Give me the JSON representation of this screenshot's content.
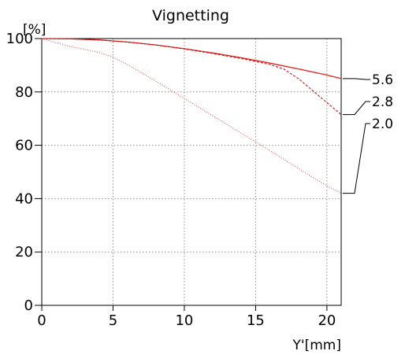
{
  "chart_data": {
    "type": "line",
    "title": "Vignetting",
    "xlabel": "Y'[mm]",
    "ylabel": "[%]",
    "xlim": [
      0,
      21
    ],
    "ylim": [
      0,
      100
    ],
    "x_ticks": [
      0,
      5,
      10,
      15,
      20
    ],
    "y_ticks": [
      0,
      20,
      40,
      60,
      80,
      100
    ],
    "x_tick_labels": [
      "0",
      "5",
      "10",
      "15",
      "20"
    ],
    "y_tick_labels": [
      "0",
      "20",
      "40",
      "60",
      "80",
      "100"
    ],
    "grid": true,
    "series": [
      {
        "name": "5.6",
        "color": "#e02020",
        "style": "solid",
        "points": [
          [
            0,
            100
          ],
          [
            2,
            99.9
          ],
          [
            4,
            99.5
          ],
          [
            6,
            98.7
          ],
          [
            8,
            97.6
          ],
          [
            10,
            96.2
          ],
          [
            12,
            94.6
          ],
          [
            14,
            92.8
          ],
          [
            16,
            90.8
          ],
          [
            18,
            88.6
          ],
          [
            20,
            86.3
          ],
          [
            21,
            85.0
          ]
        ]
      },
      {
        "name": "2.8",
        "color": "#c01818",
        "style": "dashed",
        "points": [
          [
            0,
            100
          ],
          [
            2,
            99.9
          ],
          [
            4,
            99.5
          ],
          [
            6,
            98.7
          ],
          [
            8,
            97.6
          ],
          [
            10,
            96.1
          ],
          [
            12,
            94.4
          ],
          [
            14,
            92.5
          ],
          [
            16,
            90.3
          ],
          [
            17,
            88.5
          ],
          [
            18,
            85.0
          ],
          [
            19,
            80.5
          ],
          [
            20,
            76.0
          ],
          [
            21,
            71.5
          ]
        ]
      },
      {
        "name": "2.0",
        "color": "#e05050",
        "style": "dotted",
        "points": [
          [
            0,
            100
          ],
          [
            1,
            98.5
          ],
          [
            2,
            97.0
          ],
          [
            3,
            96.0
          ],
          [
            4,
            94.8
          ],
          [
            5,
            93.0
          ],
          [
            6,
            90.3
          ],
          [
            7,
            87.2
          ],
          [
            8,
            84.0
          ],
          [
            9,
            80.8
          ],
          [
            10,
            77.5
          ],
          [
            11,
            74.3
          ],
          [
            12,
            71.0
          ],
          [
            13,
            67.8
          ],
          [
            14,
            64.5
          ],
          [
            15,
            61.3
          ],
          [
            16,
            58.0
          ],
          [
            17,
            54.7
          ],
          [
            18,
            51.3
          ],
          [
            19,
            48.0
          ],
          [
            20,
            44.8
          ],
          [
            21,
            42.0
          ]
        ]
      }
    ]
  }
}
